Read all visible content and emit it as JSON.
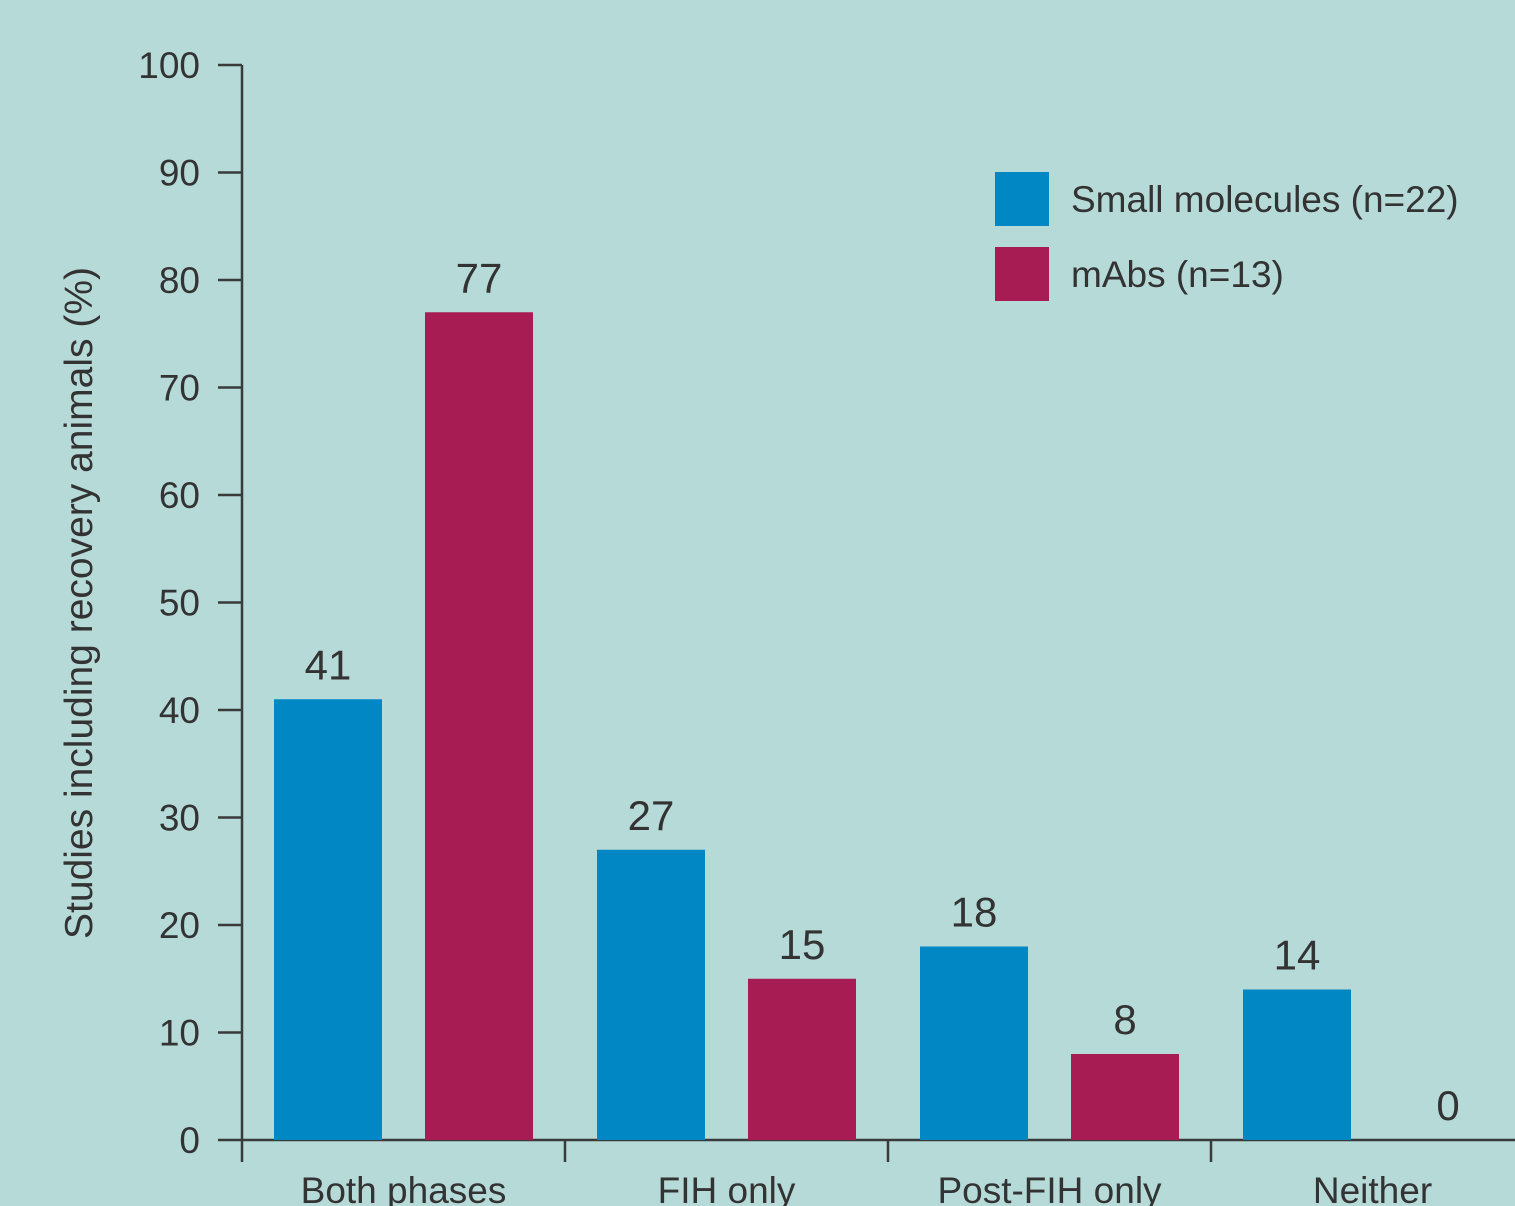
{
  "colors": {
    "background": "#b5dad8",
    "axis": "#3a3a3a",
    "text": "#333333"
  },
  "chart_data": {
    "type": "bar",
    "title": "",
    "xlabel": "",
    "ylabel": "Studies including recovery animals (%)",
    "categories": [
      "Both phases",
      "FIH only",
      "Post-FIH only",
      "Neither"
    ],
    "ylim": [
      0,
      100
    ],
    "yticks": [
      0,
      10,
      20,
      30,
      40,
      50,
      60,
      70,
      80,
      90,
      100
    ],
    "grid": false,
    "legend_position": "top-right",
    "series": [
      {
        "name": "Small molecules (n=22)",
        "color": "#0087c4",
        "values": [
          41,
          27,
          18,
          14
        ],
        "labels": [
          "41",
          "27",
          "18",
          "14"
        ]
      },
      {
        "name": "mAbs (n=13)",
        "color": "#a81c54",
        "values": [
          77,
          15,
          8,
          0
        ],
        "labels": [
          "77",
          "15",
          "8",
          "0"
        ]
      }
    ]
  }
}
